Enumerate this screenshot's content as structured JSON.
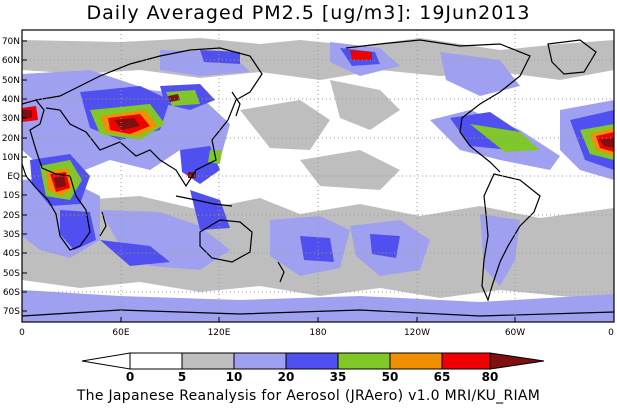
{
  "title": "Daily Averaged PM2.5 [ug/m3]: 19Jun2013",
  "footer": "The Japanese Reanalysis for Aerosol (JRAero) v1.0 MRI/KU_RIAM",
  "map": {
    "lat_labels": [
      "70N",
      "60N",
      "50N",
      "40N",
      "30N",
      "20N",
      "10N",
      "EQ",
      "10S",
      "20S",
      "30S",
      "40S",
      "50S",
      "60S",
      "70S"
    ],
    "lon_labels": [
      "0",
      "60E",
      "120E",
      "180",
      "120W",
      "60W",
      "0"
    ]
  },
  "colorbar": {
    "ticks": [
      "0",
      "5",
      "10",
      "20",
      "35",
      "50",
      "65",
      "80"
    ],
    "colors": [
      "#ffffff",
      "#bebebe",
      "#a0a0f0",
      "#5050f0",
      "#80c828",
      "#f09000",
      "#f00000",
      "#801010"
    ]
  }
}
